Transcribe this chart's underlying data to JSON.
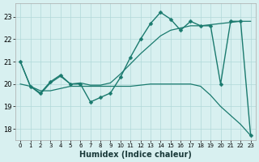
{
  "xlabel": "Humidex (Indice chaleur)",
  "x": [
    0,
    1,
    2,
    3,
    4,
    5,
    6,
    7,
    8,
    9,
    10,
    11,
    12,
    13,
    14,
    15,
    16,
    17,
    18,
    19,
    20,
    21,
    22,
    23
  ],
  "series": [
    {
      "y": [
        21.0,
        19.9,
        19.6,
        20.1,
        20.4,
        20.0,
        20.0,
        19.2,
        19.4,
        19.6,
        20.3,
        21.2,
        22.0,
        22.7,
        23.2,
        22.9,
        22.4,
        22.8,
        22.6,
        22.6,
        20.0,
        22.8,
        22.8,
        17.7
      ],
      "marker": true,
      "linewidth": 1.0
    },
    {
      "y": [
        21.0,
        19.9,
        19.55,
        20.05,
        20.35,
        20.0,
        20.05,
        19.95,
        19.95,
        20.05,
        20.45,
        20.9,
        21.35,
        21.75,
        22.15,
        22.4,
        22.5,
        22.6,
        22.6,
        22.65,
        22.7,
        22.75,
        22.8,
        22.8
      ],
      "marker": false,
      "linewidth": 0.9
    },
    {
      "y": [
        20.0,
        19.9,
        19.7,
        19.7,
        19.8,
        19.9,
        19.9,
        19.9,
        19.9,
        19.9,
        19.9,
        19.9,
        19.95,
        20.0,
        20.0,
        20.0,
        20.0,
        20.0,
        19.9,
        19.5,
        19.0,
        18.6,
        18.2,
        17.7
      ],
      "marker": false,
      "linewidth": 0.9
    }
  ],
  "color": "#1a7a6e",
  "bg_color": "#d8f0f0",
  "grid_color": "#b0d8d8",
  "ylim": [
    17.5,
    23.6
  ],
  "yticks": [
    18,
    19,
    20,
    21,
    22,
    23
  ],
  "xlim": [
    -0.5,
    23.5
  ],
  "markersize": 2.5,
  "marker_style": "D"
}
